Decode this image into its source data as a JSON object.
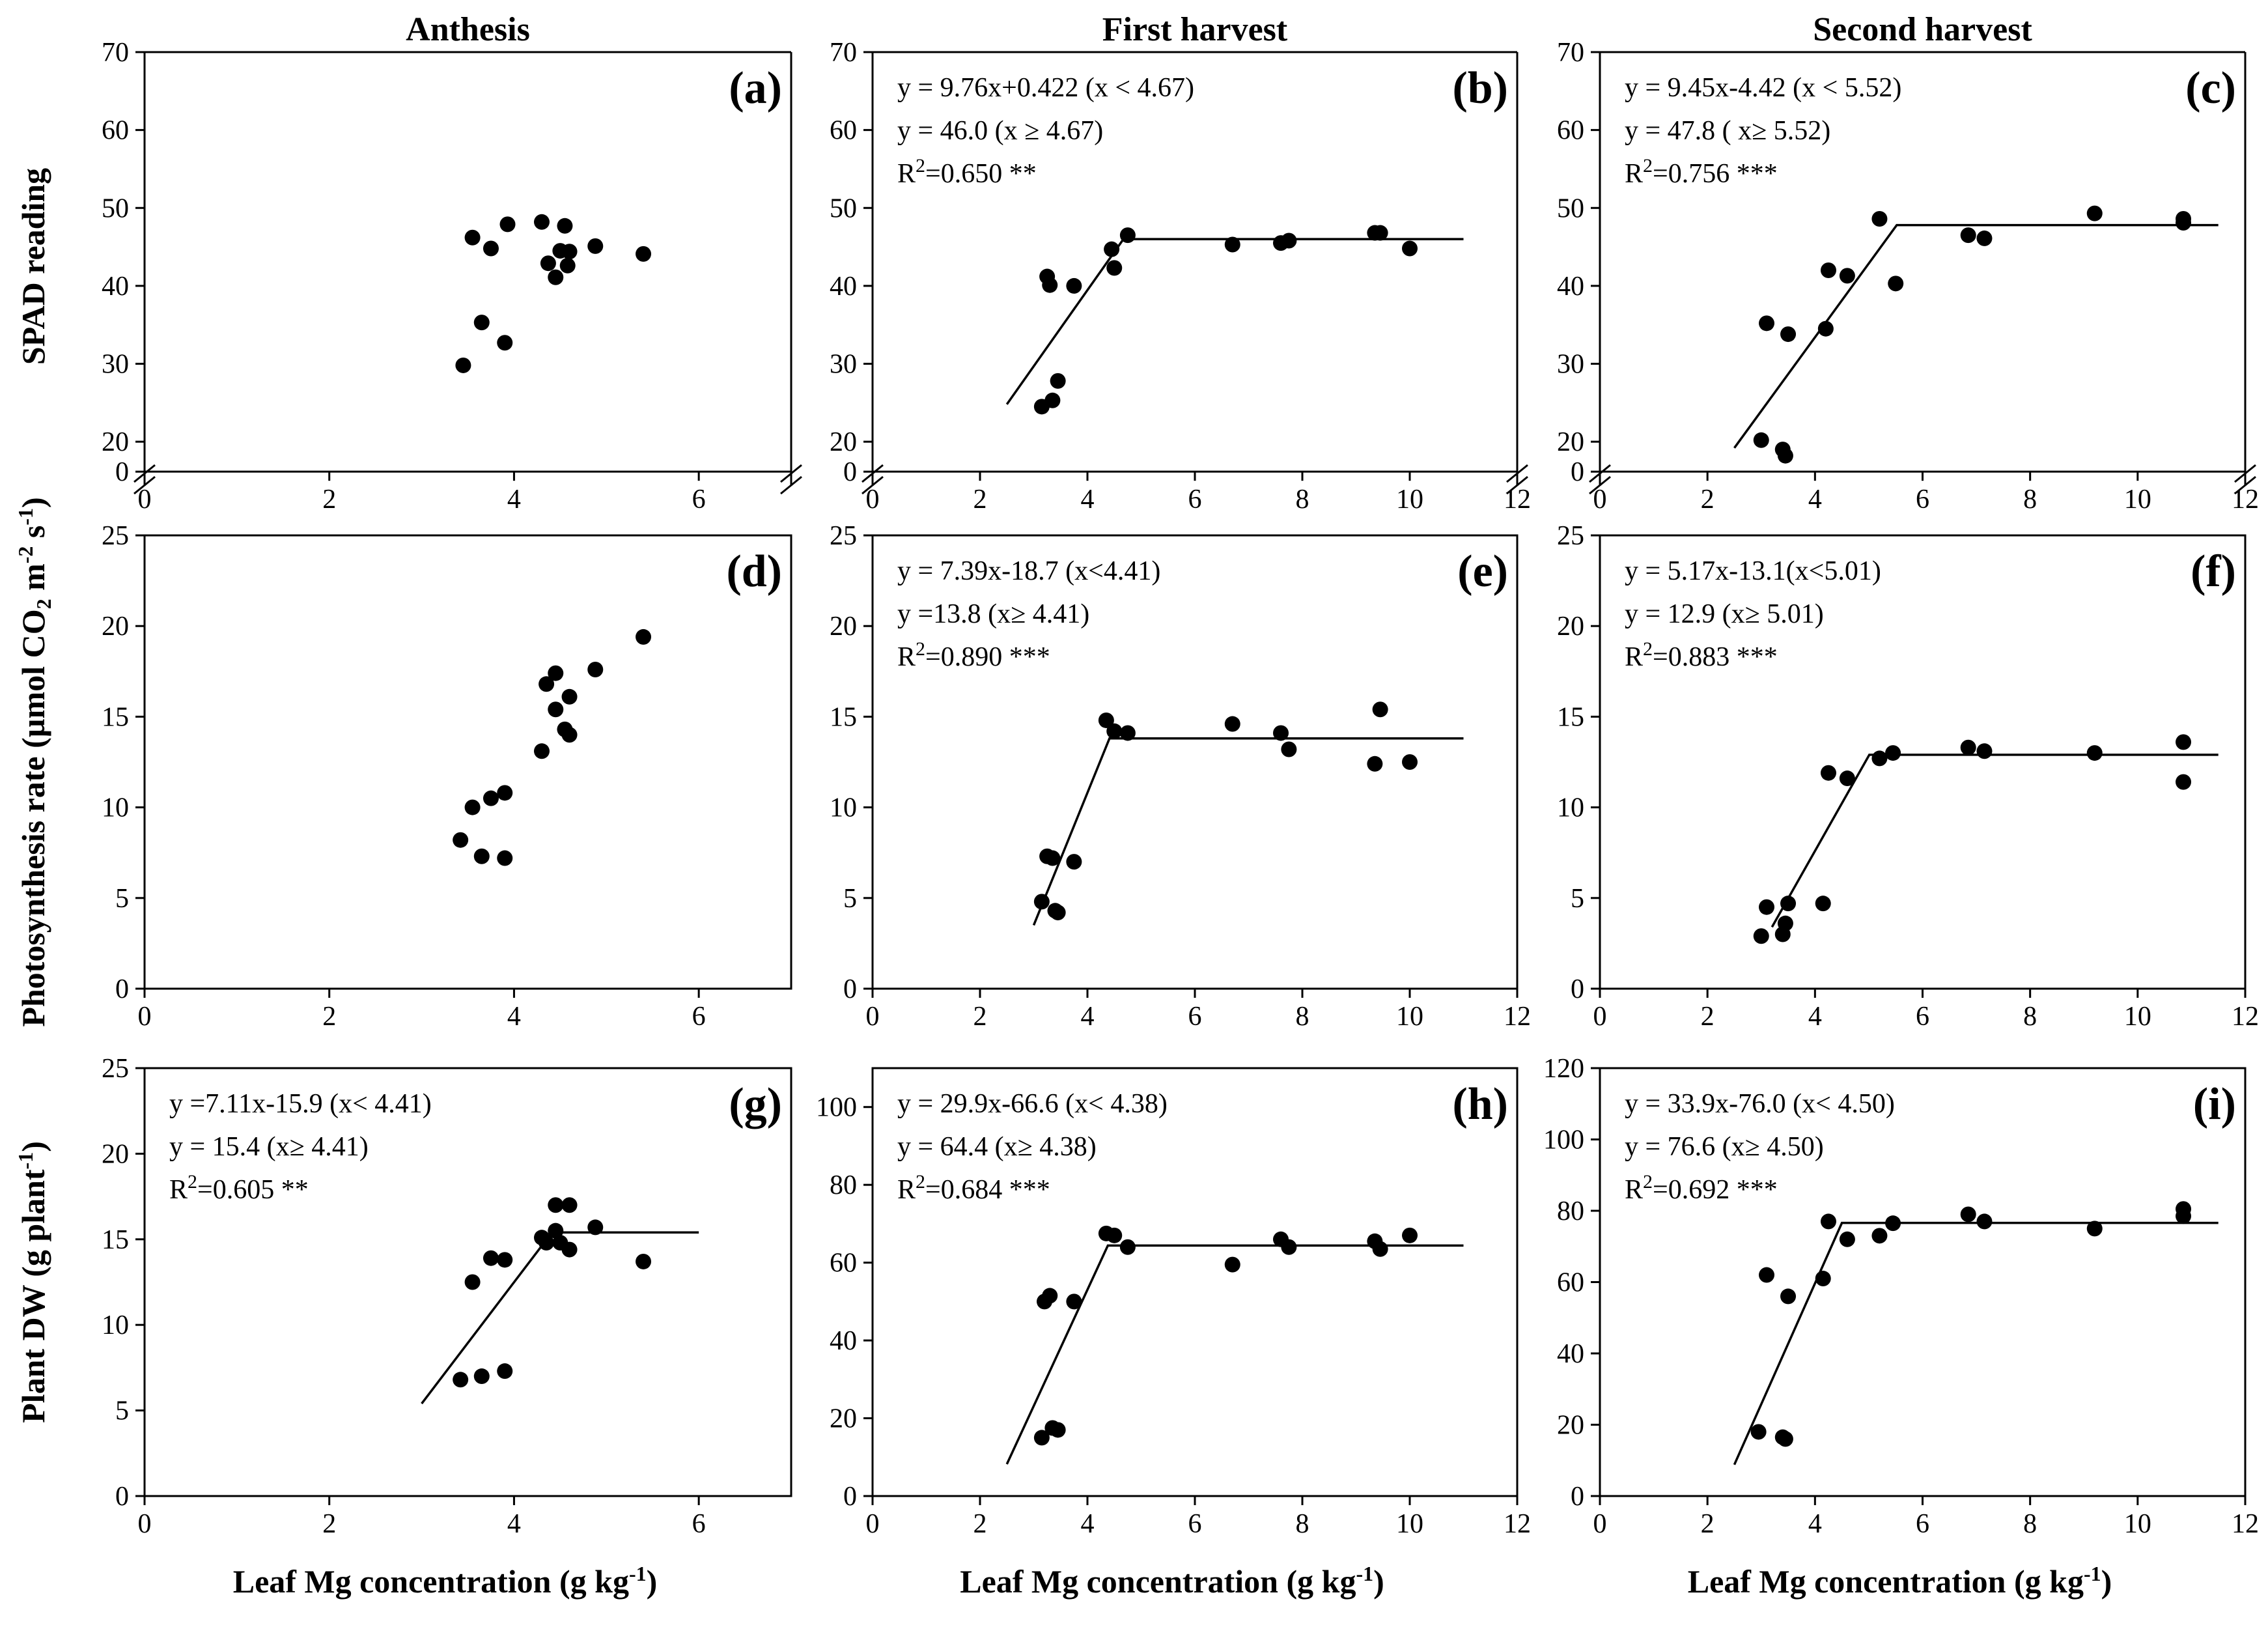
{
  "chart_data": {
    "type": "scatter",
    "column_titles": [
      "Anthesis",
      "First harvest",
      "Second harvest"
    ],
    "row_ylabels": [
      {
        "text": "SPAD reading",
        "sup": null,
        "tail": null
      },
      {
        "text": "Photosynthesis rate (µmol CO",
        "sub": "2",
        "mid": " m",
        "sup": "-2",
        "mid2": " s",
        "sup2": "-1",
        "tail": ")"
      },
      {
        "text": "Plant DW (g plant",
        "sup": "-1",
        "tail": ")"
      }
    ],
    "xlabel": {
      "text": "Leaf Mg  concentration (g kg",
      "sup": "-1",
      "tail": ")"
    },
    "panels": [
      {
        "id": "a",
        "label": "(a)",
        "row": 0,
        "col": 0,
        "xlim": [
          0,
          7
        ],
        "xticks": [
          "0",
          "2",
          "4",
          "6"
        ],
        "xtick_values": [
          0,
          2,
          4,
          6
        ],
        "ylim": [
          15,
          70
        ],
        "yticks": [
          "20",
          "30",
          "40",
          "50",
          "60",
          "70"
        ],
        "ytick_values": [
          20,
          30,
          40,
          50,
          60,
          70
        ],
        "yzero": "0",
        "axis_break": true,
        "points": [
          [
            3.45,
            29.8
          ],
          [
            3.55,
            46.2
          ],
          [
            3.65,
            35.3
          ],
          [
            3.75,
            44.8
          ],
          [
            3.9,
            32.7
          ],
          [
            3.93,
            47.9
          ],
          [
            4.3,
            48.2
          ],
          [
            4.37,
            42.9
          ],
          [
            4.45,
            41.1
          ],
          [
            4.5,
            44.5
          ],
          [
            4.55,
            47.7
          ],
          [
            4.58,
            42.6
          ],
          [
            4.6,
            44.4
          ],
          [
            4.88,
            45.1
          ],
          [
            5.4,
            44.1
          ]
        ],
        "equations": [],
        "fit": null
      },
      {
        "id": "b",
        "label": "(b)",
        "row": 0,
        "col": 1,
        "xlim": [
          0,
          12
        ],
        "xticks": [
          "0",
          "2",
          "4",
          "6",
          "8",
          "10",
          "12"
        ],
        "xtick_values": [
          0,
          2,
          4,
          6,
          8,
          10,
          12
        ],
        "ylim": [
          15,
          70
        ],
        "yticks": [
          "20",
          "30",
          "40",
          "50",
          "60",
          "70"
        ],
        "ytick_values": [
          20,
          30,
          40,
          50,
          60,
          70
        ],
        "yzero": "0",
        "axis_break": true,
        "points": [
          [
            3.15,
            24.5
          ],
          [
            3.25,
            41.2
          ],
          [
            3.3,
            40.1
          ],
          [
            3.35,
            25.3
          ],
          [
            3.45,
            27.8
          ],
          [
            3.75,
            40.0
          ],
          [
            4.45,
            44.7
          ],
          [
            4.5,
            42.3
          ],
          [
            4.75,
            46.5
          ],
          [
            6.7,
            45.3
          ],
          [
            7.6,
            45.5
          ],
          [
            7.75,
            45.8
          ],
          [
            9.35,
            46.8
          ],
          [
            9.45,
            46.8
          ],
          [
            10.0,
            44.8
          ]
        ],
        "equations": [
          {
            "text": "y = 9.76x+0.422 (x < 4.67)"
          },
          {
            "text": "y = 46.0 (x ≥  4.67)"
          },
          {
            "pre": "R",
            "sup": "2",
            "post": "=0.650 **"
          }
        ],
        "fit": {
          "x": [
            2.5,
            4.67,
            11.0
          ],
          "y": [
            24.8,
            46.0,
            46.0
          ]
        }
      },
      {
        "id": "c",
        "label": "(c)",
        "row": 0,
        "col": 2,
        "xlim": [
          0,
          12
        ],
        "xticks": [
          "0",
          "2",
          "4",
          "6",
          "8",
          "10",
          "12"
        ],
        "xtick_values": [
          0,
          2,
          4,
          6,
          8,
          10,
          12
        ],
        "ylim": [
          15,
          70
        ],
        "yticks": [
          "20",
          "30",
          "40",
          "50",
          "60",
          "70"
        ],
        "ytick_values": [
          20,
          30,
          40,
          50,
          60,
          70
        ],
        "yzero": "0",
        "axis_break": true,
        "points": [
          [
            3.0,
            20.2
          ],
          [
            3.1,
            35.2
          ],
          [
            3.4,
            19.0
          ],
          [
            3.45,
            18.2
          ],
          [
            3.5,
            33.8
          ],
          [
            4.2,
            34.5
          ],
          [
            4.25,
            42.0
          ],
          [
            4.6,
            41.3
          ],
          [
            5.2,
            48.6
          ],
          [
            5.5,
            40.3
          ],
          [
            6.85,
            46.5
          ],
          [
            7.15,
            46.1
          ],
          [
            9.2,
            49.3
          ],
          [
            10.85,
            48.6
          ],
          [
            10.85,
            48.1
          ]
        ],
        "equations": [
          {
            "text": "y = 9.45x-4.42 (x < 5.52)"
          },
          {
            "text": "y = 47.8 ( x≥  5.52)"
          },
          {
            "pre": "R",
            "sup": "2",
            "post": "=0.756 ***"
          }
        ],
        "fit": {
          "x": [
            2.5,
            5.52,
            11.5
          ],
          "y": [
            19.2,
            47.8,
            47.8
          ]
        }
      },
      {
        "id": "d",
        "label": "(d)",
        "row": 1,
        "col": 0,
        "xlim": [
          0,
          7
        ],
        "xticks": [
          "0",
          "2",
          "4",
          "6"
        ],
        "xtick_values": [
          0,
          2,
          4,
          6
        ],
        "ylim": [
          0,
          25
        ],
        "yticks": [
          "0",
          "5",
          "10",
          "15",
          "20",
          "25"
        ],
        "ytick_values": [
          0,
          5,
          10,
          15,
          20,
          25
        ],
        "yzero": null,
        "axis_break": false,
        "points": [
          [
            3.42,
            8.2
          ],
          [
            3.55,
            10.0
          ],
          [
            3.65,
            7.3
          ],
          [
            3.75,
            10.5
          ],
          [
            3.9,
            10.8
          ],
          [
            3.9,
            7.2
          ],
          [
            4.3,
            13.1
          ],
          [
            4.35,
            16.8
          ],
          [
            4.45,
            17.4
          ],
          [
            4.45,
            15.4
          ],
          [
            4.55,
            14.3
          ],
          [
            4.6,
            14.0
          ],
          [
            4.6,
            16.1
          ],
          [
            4.88,
            17.6
          ],
          [
            5.4,
            19.4
          ]
        ],
        "equations": [],
        "fit": null
      },
      {
        "id": "e",
        "label": "(e)",
        "row": 1,
        "col": 1,
        "xlim": [
          0,
          12
        ],
        "xticks": [
          "0",
          "2",
          "4",
          "6",
          "8",
          "10",
          "12"
        ],
        "xtick_values": [
          0,
          2,
          4,
          6,
          8,
          10,
          12
        ],
        "ylim": [
          0,
          25
        ],
        "yticks": [
          "0",
          "5",
          "10",
          "15",
          "20",
          "25"
        ],
        "ytick_values": [
          0,
          5,
          10,
          15,
          20,
          25
        ],
        "yzero": null,
        "axis_break": false,
        "points": [
          [
            3.15,
            4.8
          ],
          [
            3.25,
            7.3
          ],
          [
            3.35,
            7.2
          ],
          [
            3.4,
            4.3
          ],
          [
            3.45,
            4.2
          ],
          [
            3.75,
            7.0
          ],
          [
            4.35,
            14.8
          ],
          [
            4.5,
            14.2
          ],
          [
            4.75,
            14.1
          ],
          [
            6.7,
            14.6
          ],
          [
            7.6,
            14.1
          ],
          [
            7.75,
            13.2
          ],
          [
            9.35,
            12.4
          ],
          [
            9.45,
            15.4
          ],
          [
            10.0,
            12.5
          ]
        ],
        "equations": [
          {
            "text": "y = 7.39x-18.7 (x<4.41)"
          },
          {
            "text": "y =13.8 (x≥  4.41)"
          },
          {
            "pre": "R",
            "sup": "2",
            "post": "=0.890 ***"
          }
        ],
        "fit": {
          "x": [
            3.0,
            4.41,
            11.0
          ],
          "y": [
            3.5,
            13.8,
            13.8
          ]
        }
      },
      {
        "id": "f",
        "label": "(f)",
        "row": 1,
        "col": 2,
        "xlim": [
          0,
          12
        ],
        "xticks": [
          "0",
          "2",
          "4",
          "6",
          "8",
          "10",
          "12"
        ],
        "xtick_values": [
          0,
          2,
          4,
          6,
          8,
          10,
          12
        ],
        "ylim": [
          0,
          25
        ],
        "yticks": [
          "0",
          "5",
          "10",
          "15",
          "20",
          "25"
        ],
        "ytick_values": [
          0,
          5,
          10,
          15,
          20,
          25
        ],
        "yzero": null,
        "axis_break": false,
        "points": [
          [
            3.0,
            2.9
          ],
          [
            3.1,
            4.5
          ],
          [
            3.4,
            3.0
          ],
          [
            3.45,
            3.6
          ],
          [
            3.5,
            4.7
          ],
          [
            4.15,
            4.7
          ],
          [
            4.25,
            11.9
          ],
          [
            4.6,
            11.6
          ],
          [
            5.2,
            12.7
          ],
          [
            5.45,
            13.0
          ],
          [
            6.85,
            13.3
          ],
          [
            7.15,
            13.1
          ],
          [
            9.2,
            13.0
          ],
          [
            10.85,
            13.6
          ],
          [
            10.85,
            11.4
          ]
        ],
        "equations": [
          {
            "text": "y = 5.17x-13.1(x<5.01)"
          },
          {
            "text": "y = 12.9 (x≥  5.01)"
          },
          {
            "pre": "R",
            "sup": "2",
            "post": "=0.883 ***"
          }
        ],
        "fit": {
          "x": [
            3.2,
            5.01,
            11.5
          ],
          "y": [
            3.4,
            12.9,
            12.9
          ]
        }
      },
      {
        "id": "g",
        "label": "(g)",
        "row": 2,
        "col": 0,
        "xlim": [
          0,
          7
        ],
        "xticks": [
          "0",
          "2",
          "4",
          "6"
        ],
        "xtick_values": [
          0,
          2,
          4,
          6
        ],
        "ylim": [
          0,
          25
        ],
        "yticks": [
          "0",
          "5",
          "10",
          "15",
          "20",
          "25"
        ],
        "ytick_values": [
          0,
          5,
          10,
          15,
          20,
          25
        ],
        "yzero": null,
        "axis_break": false,
        "points": [
          [
            3.42,
            6.8
          ],
          [
            3.55,
            12.5
          ],
          [
            3.65,
            7.0
          ],
          [
            3.75,
            13.9
          ],
          [
            3.9,
            7.3
          ],
          [
            3.9,
            13.8
          ],
          [
            4.3,
            15.1
          ],
          [
            4.35,
            14.8
          ],
          [
            4.45,
            17.0
          ],
          [
            4.45,
            15.5
          ],
          [
            4.5,
            14.8
          ],
          [
            4.6,
            14.4
          ],
          [
            4.6,
            17.0
          ],
          [
            4.88,
            15.7
          ],
          [
            5.4,
            13.7
          ]
        ],
        "equations": [
          {
            "text": "y =7.11x-15.9 (x< 4.41)"
          },
          {
            "text": "y = 15.4 (x≥  4.41)"
          },
          {
            "pre": "R",
            "sup": "2",
            "post": "=0.605 **"
          }
        ],
        "fit": {
          "x": [
            3.0,
            4.41,
            6.0
          ],
          "y": [
            5.4,
            15.4,
            15.4
          ]
        }
      },
      {
        "id": "h",
        "label": "(h)",
        "row": 2,
        "col": 1,
        "xlim": [
          0,
          12
        ],
        "xticks": [
          "0",
          "2",
          "4",
          "6",
          "8",
          "10",
          "12"
        ],
        "xtick_values": [
          0,
          2,
          4,
          6,
          8,
          10,
          12
        ],
        "ylim": [
          0,
          110
        ],
        "yticks": [
          "0",
          "20",
          "40",
          "60",
          "80",
          "100"
        ],
        "ytick_values": [
          0,
          20,
          40,
          60,
          80,
          100
        ],
        "yzero": null,
        "axis_break": false,
        "points": [
          [
            3.15,
            15.0
          ],
          [
            3.2,
            50.0
          ],
          [
            3.3,
            51.5
          ],
          [
            3.35,
            17.5
          ],
          [
            3.45,
            17.0
          ],
          [
            3.75,
            50.0
          ],
          [
            4.35,
            67.5
          ],
          [
            4.5,
            67.0
          ],
          [
            4.75,
            64.0
          ],
          [
            6.7,
            59.5
          ],
          [
            7.6,
            66.0
          ],
          [
            7.75,
            64.0
          ],
          [
            9.35,
            65.5
          ],
          [
            9.45,
            63.5
          ],
          [
            10.0,
            67.0
          ]
        ],
        "equations": [
          {
            "text": "y = 29.9x-66.6 (x< 4.38)"
          },
          {
            "text": "y = 64.4 (x≥  4.38)"
          },
          {
            "pre": "R",
            "sup": "2",
            "post": "=0.684 ***"
          }
        ],
        "fit": {
          "x": [
            2.5,
            4.38,
            11.0
          ],
          "y": [
            8.2,
            64.4,
            64.4
          ]
        }
      },
      {
        "id": "i",
        "label": "(i)",
        "row": 2,
        "col": 2,
        "xlim": [
          0,
          12
        ],
        "xticks": [
          "0",
          "2",
          "4",
          "6",
          "8",
          "10",
          "12"
        ],
        "xtick_values": [
          0,
          2,
          4,
          6,
          8,
          10,
          12
        ],
        "ylim": [
          0,
          120
        ],
        "yticks": [
          "0",
          "20",
          "40",
          "60",
          "80",
          "100",
          "120"
        ],
        "ytick_values": [
          0,
          20,
          40,
          60,
          80,
          100,
          120
        ],
        "yzero": null,
        "axis_break": false,
        "points": [
          [
            2.95,
            18.0
          ],
          [
            3.1,
            62.0
          ],
          [
            3.4,
            16.5
          ],
          [
            3.45,
            16.0
          ],
          [
            3.5,
            56.0
          ],
          [
            4.15,
            61.0
          ],
          [
            4.25,
            77.0
          ],
          [
            4.6,
            72.0
          ],
          [
            5.2,
            73.0
          ],
          [
            5.45,
            76.5
          ],
          [
            6.85,
            79.0
          ],
          [
            7.15,
            77.0
          ],
          [
            9.2,
            75.0
          ],
          [
            10.85,
            80.5
          ],
          [
            10.85,
            78.5
          ]
        ],
        "equations": [
          {
            "text": "y = 33.9x-76.0 (x< 4.50)"
          },
          {
            "text": "y = 76.6  (x≥  4.50)"
          },
          {
            "pre": "R",
            "sup": "2",
            "post": "=0.692 ***"
          }
        ],
        "fit": {
          "x": [
            2.5,
            4.5,
            11.5
          ],
          "y": [
            8.8,
            76.6,
            76.6
          ]
        }
      }
    ]
  }
}
